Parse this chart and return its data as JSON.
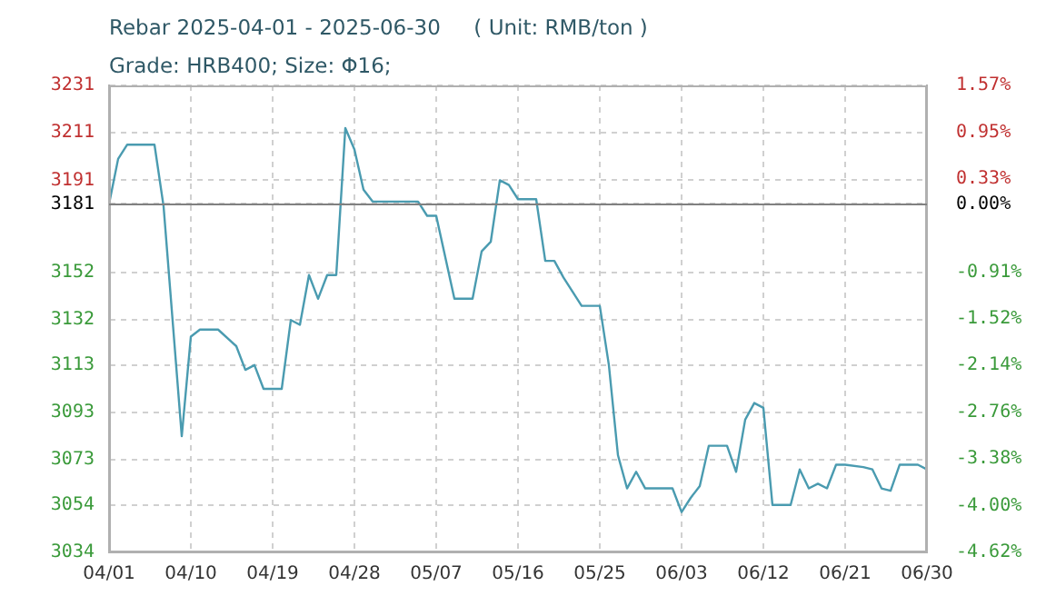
{
  "chart_data": {
    "type": "line",
    "title": "Rebar 2025-04-01 - 2025-06-30     ( Unit: RMB/ton )",
    "subtitle": "Grade: HRB400; Size: Φ16;",
    "x": [
      "2025-04-01",
      "2025-04-02",
      "2025-04-03",
      "2025-04-06",
      "2025-04-07",
      "2025-04-09",
      "2025-04-10",
      "2025-04-11",
      "2025-04-13",
      "2025-04-15",
      "2025-04-16",
      "2025-04-17",
      "2025-04-18",
      "2025-04-20",
      "2025-04-21",
      "2025-04-22",
      "2025-04-23",
      "2025-04-24",
      "2025-04-25",
      "2025-04-26",
      "2025-04-27",
      "2025-04-28",
      "2025-04-29",
      "2025-04-30",
      "2025-05-05",
      "2025-05-06",
      "2025-05-07",
      "2025-05-09",
      "2025-05-11",
      "2025-05-12",
      "2025-05-13",
      "2025-05-14",
      "2025-05-15",
      "2025-05-16",
      "2025-05-18",
      "2025-05-19",
      "2025-05-20",
      "2025-05-21",
      "2025-05-23",
      "2025-05-25",
      "2025-05-26",
      "2025-05-27",
      "2025-05-28",
      "2025-05-29",
      "2025-05-30",
      "2025-06-02",
      "2025-06-03",
      "2025-06-04",
      "2025-06-05",
      "2025-06-06",
      "2025-06-08",
      "2025-06-09",
      "2025-06-10",
      "2025-06-11",
      "2025-06-12",
      "2025-06-13",
      "2025-06-15",
      "2025-06-16",
      "2025-06-17",
      "2025-06-18",
      "2025-06-19",
      "2025-06-20",
      "2025-06-21",
      "2025-06-23",
      "2025-06-24",
      "2025-06-25",
      "2025-06-26",
      "2025-06-27",
      "2025-06-29",
      "2025-06-30"
    ],
    "series": [
      {
        "color": "#4a9bb0",
        "values": [
          3181,
          3200,
          3206,
          3206,
          3180,
          3083,
          3125,
          3128,
          3128,
          3121,
          3111,
          3113,
          3103,
          3103,
          3132,
          3130,
          3151,
          3141,
          3151,
          3151,
          3213,
          3204,
          3187,
          3182,
          3182,
          3176,
          3176,
          3141,
          3141,
          3161,
          3165,
          3191,
          3189,
          3183,
          3183,
          3157,
          3157,
          3150,
          3138,
          3138,
          3113,
          3075,
          3061,
          3068,
          3061,
          3061,
          3051,
          3057,
          3062,
          3079,
          3079,
          3068,
          3090,
          3097,
          3095,
          3054,
          3054,
          3069,
          3061,
          3063,
          3061,
          3071,
          3071,
          3070,
          3069,
          3061,
          3060,
          3071,
          3071,
          3069
        ]
      }
    ],
    "xlim": [
      "2025-04-01",
      "2025-06-30"
    ],
    "xticks": [
      {
        "value": "2025-04-01",
        "label": "04/01"
      },
      {
        "value": "2025-04-10",
        "label": "04/10"
      },
      {
        "value": "2025-04-19",
        "label": "04/19"
      },
      {
        "value": "2025-04-28",
        "label": "04/28"
      },
      {
        "value": "2025-05-07",
        "label": "05/07"
      },
      {
        "value": "2025-05-16",
        "label": "05/16"
      },
      {
        "value": "2025-05-25",
        "label": "05/25"
      },
      {
        "value": "2025-06-03",
        "label": "06/03"
      },
      {
        "value": "2025-06-12",
        "label": "06/12"
      },
      {
        "value": "2025-06-21",
        "label": "06/21"
      },
      {
        "value": "2025-06-30",
        "label": "06/30"
      }
    ],
    "ylim": [
      3034,
      3231
    ],
    "yticks": [
      3034,
      3054,
      3073,
      3093,
      3113,
      3132,
      3152,
      3181,
      3191,
      3211,
      3231
    ],
    "y2lim": [
      -4.62,
      1.57
    ],
    "y2ticks": [
      {
        "value": -4.62,
        "label": "-4.62%"
      },
      {
        "value": -4.0,
        "label": "-4.00%"
      },
      {
        "value": -3.38,
        "label": "-3.38%"
      },
      {
        "value": -2.76,
        "label": "-2.76%"
      },
      {
        "value": -2.14,
        "label": "-2.14%"
      },
      {
        "value": -1.52,
        "label": "-1.52%"
      },
      {
        "value": -0.91,
        "label": "-0.91%"
      },
      {
        "value": 0,
        "label": "0.00%"
      },
      {
        "value": 0.33,
        "label": "0.33%"
      },
      {
        "value": 0.95,
        "label": "0.95%"
      },
      {
        "value": 1.57,
        "label": "1.57%"
      }
    ],
    "ref_lines": [
      {
        "axis": "y",
        "value": 3181,
        "color": "#808080"
      }
    ],
    "grid": true,
    "legend": false,
    "marker": "none",
    "line_style": "solid"
  }
}
